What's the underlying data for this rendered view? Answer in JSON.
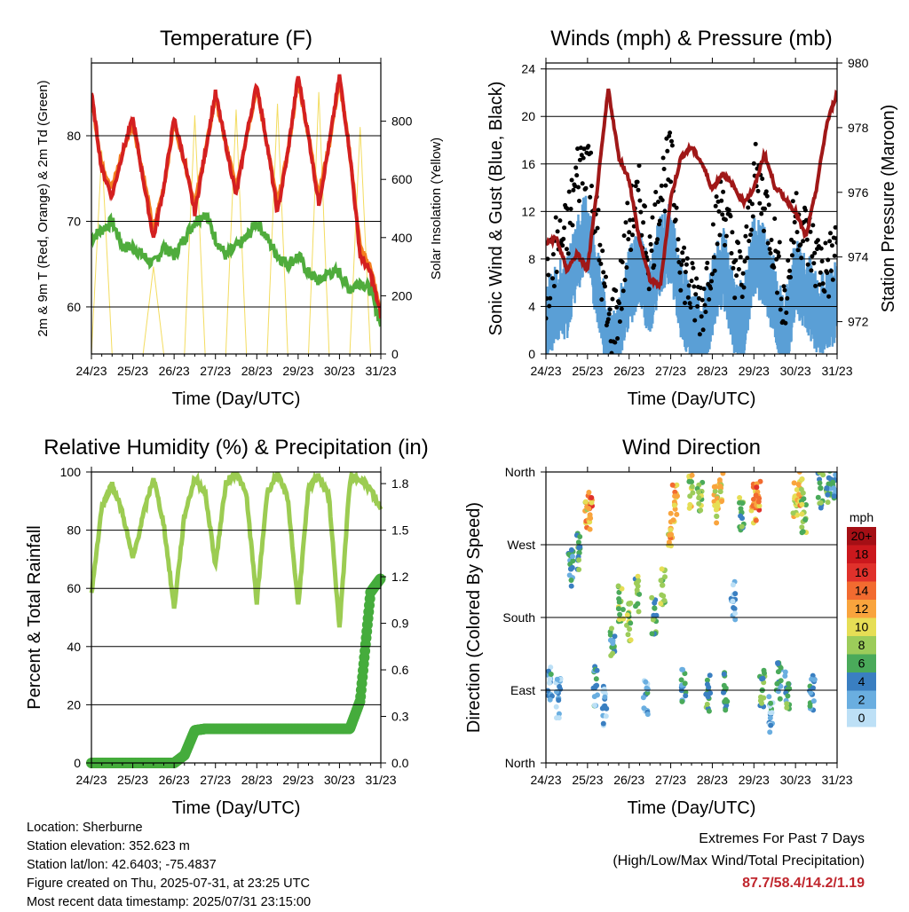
{
  "x_tick_labels": [
    "24/23",
    "25/23",
    "26/23",
    "27/23",
    "28/23",
    "29/23",
    "30/23",
    "31/23"
  ],
  "x_axis_title": "Time (Day/UTC)",
  "info": {
    "location": "Location: Sherburne",
    "elevation": "Station elevation: 352.623 m",
    "latlon": "Station lat/lon: 42.6403; -75.4837",
    "created": "Figure created on Thu, 2025-07-31, at 23:25 UTC",
    "recent": "Most recent data timestamp: 2025/07/31 23:15:00"
  },
  "extremes": {
    "title": "Extremes For Past 7 Days",
    "subtitle": "(High/Low/Max Wind/Total Precipitation)",
    "values": "87.7/58.4/14.2/1.19"
  },
  "colorbar": {
    "unit": "mph",
    "labels": [
      "20+",
      "18",
      "16",
      "14",
      "12",
      "10",
      "8",
      "6",
      "4",
      "2",
      "0"
    ],
    "colors": [
      "#a50f15",
      "#cb181d",
      "#e0312b",
      "#f26b30",
      "#f9a43d",
      "#e6de55",
      "#9ccc5a",
      "#4aaa5a",
      "#3a7fc1",
      "#6aaee0",
      "#bde0f6"
    ]
  },
  "colors": {
    "temp_red": "#d42020",
    "temp_orange": "#f47f20",
    "dewpoint_green": "#4fac3c",
    "solar_yellow": "#f3dc60",
    "wind_blue": "#5a9fd6",
    "gust_black": "#000000",
    "pressure_maroon": "#a01818",
    "rh_lightgreen": "#9ccc52",
    "rain_green": "#45ac3c"
  },
  "chart_data": [
    {
      "type": "line",
      "title": "Temperature (F)",
      "xlabel": "Time (Day/UTC)",
      "ylabel": "2m & 9m T (Red, Orange) & 2m Td (Green)",
      "y2label": "Solar Insolation (Yellow)",
      "ylim": [
        54.5,
        88.5
      ],
      "yticks": [
        60,
        70,
        80
      ],
      "y2lim": [
        0,
        1000
      ],
      "y2ticks": [
        0,
        200,
        400,
        600,
        800
      ],
      "x": [
        0,
        0.25,
        0.5,
        0.75,
        1,
        1.25,
        1.5,
        1.75,
        2,
        2.25,
        2.5,
        2.75,
        3,
        3.25,
        3.5,
        3.75,
        4,
        4.25,
        4.5,
        4.75,
        5,
        5.25,
        5.5,
        5.75,
        6,
        6.25,
        6.5,
        6.75,
        7
      ],
      "series": [
        {
          "name": "2m T",
          "values": [
            85,
            76,
            73,
            78,
            82,
            75,
            68,
            74,
            82,
            77,
            71,
            78,
            85,
            79,
            73,
            80,
            86,
            79,
            71,
            78,
            87,
            80,
            72,
            79,
            87,
            78,
            66,
            64,
            59
          ]
        },
        {
          "name": "9m T",
          "values": [
            84.5,
            76.5,
            74,
            78,
            81.5,
            75.5,
            69,
            74,
            81.5,
            77,
            72,
            78,
            84.5,
            79,
            74,
            80,
            85.5,
            79,
            72,
            78,
            86.5,
            80,
            73,
            79,
            86.5,
            78,
            67,
            64.5,
            59.5
          ]
        },
        {
          "name": "2m Td",
          "values": [
            68,
            69,
            70,
            67,
            67,
            66,
            65,
            67,
            66,
            68,
            70,
            71,
            68,
            66,
            67,
            68,
            70,
            68,
            66,
            65,
            66,
            64,
            63,
            64,
            64,
            62,
            63,
            62,
            58
          ]
        },
        {
          "name": "Solar Insolation",
          "axis": "y2",
          "values": [
            0,
            700,
            0,
            0,
            0,
            0,
            300,
            0,
            0,
            0,
            820,
            0,
            0,
            0,
            840,
            0,
            0,
            0,
            860,
            0,
            0,
            0,
            900,
            0,
            0,
            0,
            780,
            0,
            0
          ]
        }
      ]
    },
    {
      "type": "line",
      "title": "Winds (mph) & Pressure (mb)",
      "xlabel": "Time (Day/UTC)",
      "ylabel": "Sonic Wind & Gust (Blue, Black)",
      "y2label": "Station Pressure (Maroon)",
      "ylim": [
        0,
        24.5
      ],
      "yticks": [
        0,
        4,
        8,
        12,
        16,
        20,
        24
      ],
      "y2lim": [
        971,
        980
      ],
      "y2ticks": [
        972,
        974,
        976,
        978,
        980
      ],
      "x": [
        0,
        0.25,
        0.5,
        0.75,
        1,
        1.25,
        1.5,
        1.75,
        2,
        2.25,
        2.5,
        2.75,
        3,
        3.25,
        3.5,
        3.75,
        4,
        4.25,
        4.5,
        4.75,
        5,
        5.25,
        5.5,
        5.75,
        6,
        6.25,
        6.5,
        6.75,
        7
      ],
      "series": [
        {
          "name": "Sonic Wind",
          "values": [
            3,
            5,
            5,
            9,
            11,
            6,
            1,
            2,
            6,
            8,
            5,
            9,
            10,
            5,
            3,
            2,
            5,
            8,
            4,
            3,
            9,
            8,
            5,
            2,
            7,
            6,
            4,
            4,
            5
          ]
        },
        {
          "name": "Gust",
          "values": [
            5,
            9,
            10,
            15,
            17,
            10,
            2,
            4,
            11,
            13,
            8,
            14,
            16,
            8,
            5,
            4,
            9,
            13,
            8,
            6,
            15,
            13,
            9,
            4,
            12,
            10,
            8,
            7,
            9
          ]
        },
        {
          "name": "Station Pressure",
          "axis": "y2",
          "values": [
            974.4,
            974.6,
            973.6,
            974.1,
            973.6,
            976.3,
            979.2,
            977.1,
            976.4,
            974.5,
            973.3,
            973.1,
            975.8,
            977.1,
            977.4,
            976.9,
            976.1,
            976.6,
            976.2,
            975.7,
            976.1,
            977.2,
            976.2,
            975.8,
            975.4,
            974.6,
            976.1,
            978.1,
            979.1
          ]
        }
      ]
    },
    {
      "type": "line",
      "title": "Relative Humidity (%) & Precipitation (in)",
      "xlabel": "Time (Day/UTC)",
      "ylabel": "Percent & Total Rainfall",
      "ylim": [
        0,
        100
      ],
      "yticks": [
        0,
        20,
        40,
        60,
        80,
        100
      ],
      "y2lim": [
        0,
        1.875
      ],
      "y2ticks": [
        0.0,
        0.3,
        0.6,
        0.9,
        1.2,
        1.5,
        1.8
      ],
      "x": [
        0,
        0.25,
        0.5,
        0.75,
        1,
        1.25,
        1.5,
        1.75,
        2,
        2.25,
        2.5,
        2.75,
        3,
        3.25,
        3.5,
        3.75,
        4,
        4.25,
        4.5,
        4.75,
        5,
        5.25,
        5.5,
        5.75,
        6,
        6.25,
        6.5,
        6.75,
        7
      ],
      "series": [
        {
          "name": "Relative Humidity",
          "values": [
            58,
            88,
            96,
            86,
            70,
            85,
            98,
            82,
            53,
            85,
            98,
            93,
            68,
            96,
            100,
            92,
            55,
            93,
            99,
            91,
            54,
            94,
            99,
            91,
            46,
            97,
            98,
            94,
            87
          ]
        },
        {
          "name": "Total Rainfall",
          "axis": "y2",
          "values": [
            0,
            0,
            0,
            0,
            0,
            0,
            0,
            0,
            0,
            0.05,
            0.21,
            0.22,
            0.22,
            0.22,
            0.22,
            0.22,
            0.22,
            0.22,
            0.22,
            0.22,
            0.22,
            0.22,
            0.22,
            0.22,
            0.22,
            0.22,
            0.4,
            1.1,
            1.19
          ]
        }
      ]
    },
    {
      "type": "scatter",
      "title": "Wind Direction",
      "xlabel": "Time (Day/UTC)",
      "ylabel": "Direction (Colored By Speed)",
      "ylim": [
        0,
        360
      ],
      "ytick_values": [
        0,
        90,
        180,
        270,
        360
      ],
      "ytick_labels": [
        "North",
        "East",
        "South",
        "West",
        "North"
      ],
      "x": [
        0.1,
        0.3,
        0.6,
        0.8,
        1.0,
        1.05,
        1.2,
        1.4,
        1.6,
        1.8,
        2.0,
        2.2,
        2.4,
        2.6,
        2.8,
        3.0,
        3.1,
        3.3,
        3.5,
        3.7,
        3.9,
        4.1,
        4.2,
        4.3,
        4.5,
        4.7,
        5.0,
        5.1,
        5.2,
        5.4,
        5.6,
        5.8,
        6.0,
        6.1,
        6.2,
        6.4,
        6.6,
        6.8,
        6.95
      ],
      "y": [
        100,
        80,
        240,
        260,
        300,
        315,
        95,
        70,
        150,
        200,
        175,
        210,
        85,
        180,
        220,
        290,
        320,
        95,
        340,
        330,
        85,
        320,
        340,
        90,
        200,
        310,
        320,
        330,
        90,
        60,
        100,
        90,
        330,
        340,
        310,
        85,
        340,
        345,
        350
      ],
      "speed": [
        3,
        2,
        4,
        6,
        11,
        13,
        3,
        2,
        5,
        8,
        9,
        7,
        3,
        5,
        8,
        11,
        12,
        4,
        9,
        8,
        6,
        10,
        11,
        5,
        2,
        7,
        12,
        13,
        6,
        3,
        4,
        5,
        10,
        11,
        8,
        4,
        6,
        5,
        4
      ]
    }
  ]
}
